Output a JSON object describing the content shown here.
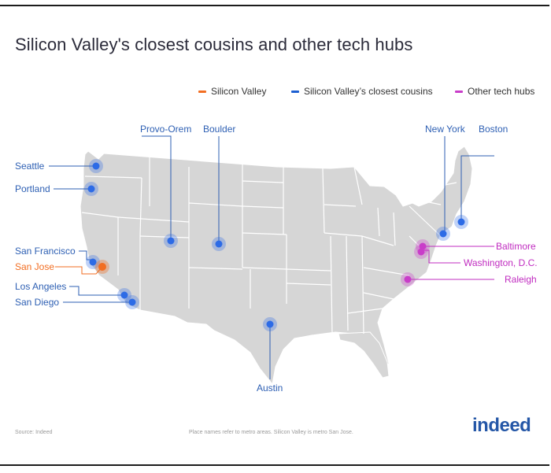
{
  "title": "Silicon Valley's closest cousins and other tech hubs",
  "legend": [
    {
      "label": "Silicon Valley",
      "color": "#f26e22"
    },
    {
      "label": "Silicon Valley’s closest cousins",
      "color": "#1c5fd1"
    },
    {
      "label": "Other tech hubs",
      "color": "#c93dc9"
    }
  ],
  "colors": {
    "land": "#d6d6d6",
    "state_border": "#ffffff",
    "silicon_valley": "#f26e22",
    "cousin": "#2d6be6",
    "other": "#c93dc9",
    "label_blue": "#2d5fb3",
    "label_orange": "#f26e22",
    "label_magenta": "#c02cc0"
  },
  "cities": [
    {
      "name": "Seattle",
      "category": "cousin"
    },
    {
      "name": "Portland",
      "category": "cousin"
    },
    {
      "name": "San Francisco",
      "category": "cousin"
    },
    {
      "name": "San Jose",
      "category": "silicon_valley"
    },
    {
      "name": "Los Angeles",
      "category": "cousin"
    },
    {
      "name": "San Diego",
      "category": "cousin"
    },
    {
      "name": "Provo-Orem",
      "category": "cousin"
    },
    {
      "name": "Boulder",
      "category": "cousin"
    },
    {
      "name": "Austin",
      "category": "cousin"
    },
    {
      "name": "New York",
      "category": "cousin"
    },
    {
      "name": "Boston",
      "category": "cousin"
    },
    {
      "name": "Baltimore",
      "category": "other"
    },
    {
      "name": "Washington, D.C.",
      "category": "other"
    },
    {
      "name": "Raleigh",
      "category": "other"
    }
  ],
  "footer": {
    "source": "Source: Indeed",
    "note": "Place names refer to metro areas. Silicon Valley is metro San Jose."
  },
  "logo": {
    "text": "indeed"
  }
}
